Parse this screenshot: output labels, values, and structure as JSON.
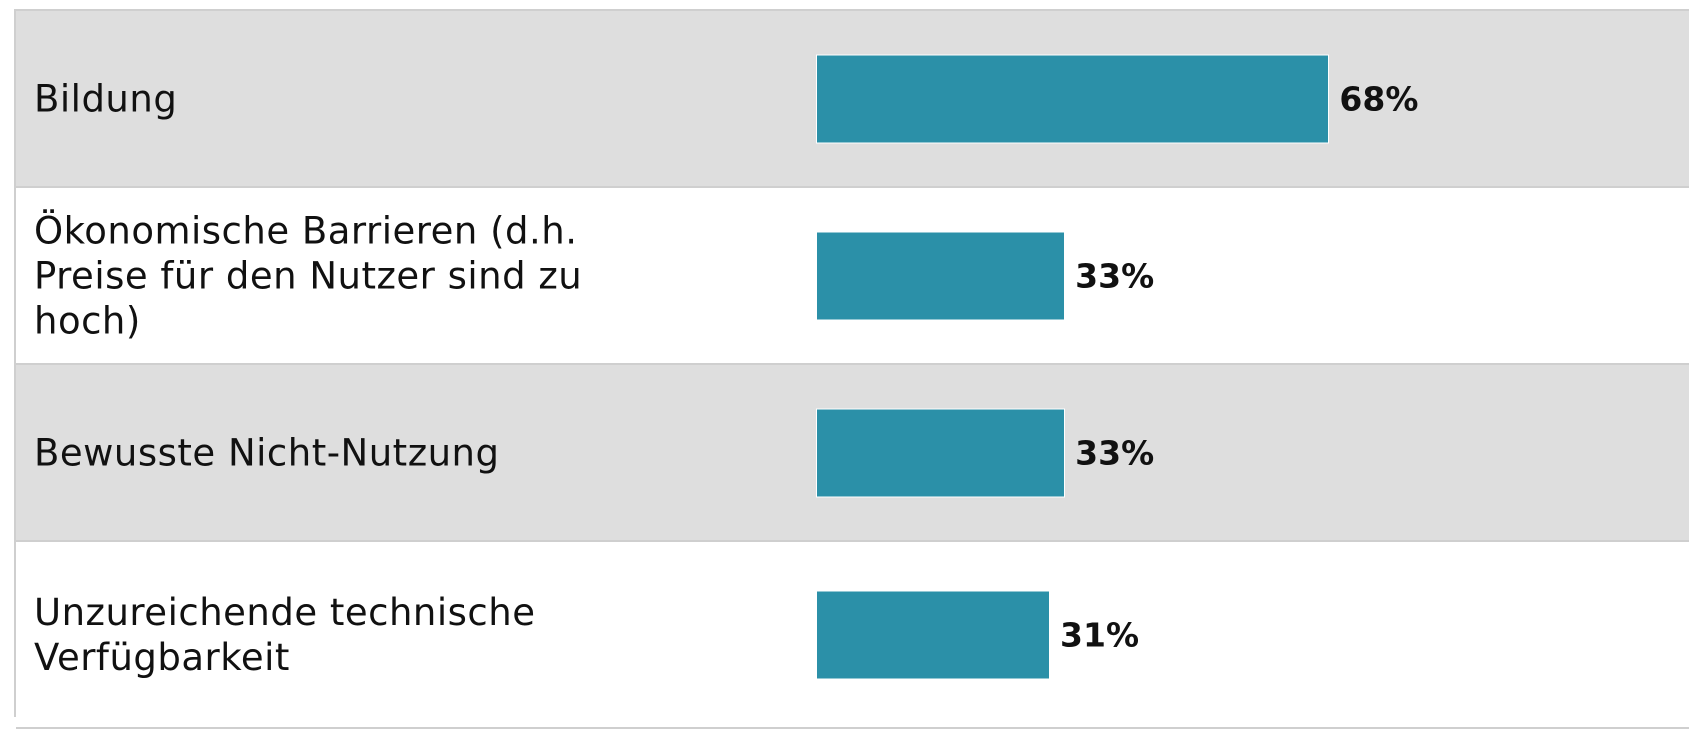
{
  "chart_data": {
    "type": "bar",
    "orientation": "horizontal",
    "categories": [
      "Bildung",
      "Ökonomische Barrieren (d.h. Preise für den Nutzer sind zu hoch)",
      "Bewusste Nicht-Nutzung",
      "Unzureichende technische Verfügbarkeit"
    ],
    "values": [
      68,
      33,
      33,
      31
    ],
    "value_labels": [
      "68%",
      "33%",
      "33%",
      "31%"
    ],
    "color": "#2b90a8",
    "xlim": [
      0,
      100
    ]
  }
}
